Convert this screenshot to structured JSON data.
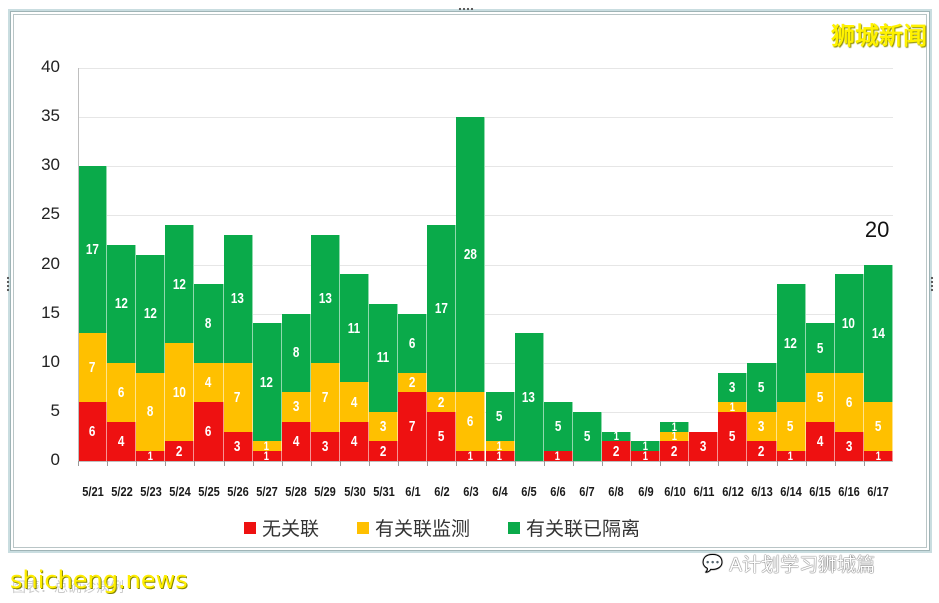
{
  "watermarks": {
    "brand_top_right": "狮城新闻",
    "site": "shicheng.news",
    "caption_faint": "图表：总确诊病例",
    "wechat_icon": "wechat-chat-bubbles-icon",
    "wechat_source": "A计划学习狮城篇"
  },
  "annotation": {
    "last_total": "20"
  },
  "legend": [
    {
      "label": "无关联",
      "color": "#ee1111"
    },
    {
      "label": "有关联监测",
      "color": "#ffc000"
    },
    {
      "label": "有关联已隔离",
      "color": "#0aaa4a"
    }
  ],
  "yticks": [
    "0",
    "5",
    "10",
    "15",
    "20",
    "25",
    "30",
    "35",
    "40"
  ],
  "chart_data": {
    "type": "bar",
    "stacked": true,
    "title": "",
    "xlabel": "",
    "ylabel": "",
    "ylim": [
      0,
      40
    ],
    "yticks": [
      0,
      5,
      10,
      15,
      20,
      25,
      30,
      35,
      40
    ],
    "grid": true,
    "legend_position": "bottom",
    "categories": [
      "5/21",
      "5/22",
      "5/23",
      "5/24",
      "5/25",
      "5/26",
      "5/27",
      "5/28",
      "5/29",
      "5/30",
      "5/31",
      "6/1",
      "6/2",
      "6/3",
      "6/4",
      "6/5",
      "6/6",
      "6/7",
      "6/8",
      "6/9",
      "6/10",
      "6/11",
      "6/12",
      "6/13",
      "6/14",
      "6/15",
      "6/16",
      "6/17"
    ],
    "series": [
      {
        "name": "无关联",
        "color": "#ee1111",
        "values": [
          6,
          4,
          1,
          2,
          6,
          3,
          1,
          4,
          3,
          4,
          2,
          7,
          5,
          1,
          1,
          0,
          1,
          0,
          2,
          1,
          2,
          3,
          5,
          2,
          1,
          4,
          3,
          1
        ]
      },
      {
        "name": "有关联监测",
        "color": "#ffc000",
        "values": [
          7,
          6,
          8,
          10,
          4,
          7,
          1,
          3,
          7,
          4,
          3,
          2,
          2,
          6,
          1,
          0,
          0,
          0,
          0,
          0,
          1,
          0,
          1,
          3,
          5,
          5,
          6,
          5
        ]
      },
      {
        "name": "有关联已隔离",
        "color": "#0aaa4a",
        "values": [
          17,
          12,
          12,
          12,
          8,
          13,
          12,
          8,
          13,
          11,
          11,
          6,
          17,
          28,
          5,
          13,
          5,
          5,
          1,
          1,
          1,
          0,
          3,
          5,
          12,
          5,
          10,
          14
        ]
      }
    ],
    "totals": [
      30,
      22,
      21,
      24,
      18,
      23,
      14,
      15,
      23,
      19,
      16,
      15,
      24,
      35,
      7,
      13,
      6,
      5,
      3,
      2,
      4,
      3,
      9,
      10,
      18,
      14,
      19,
      20
    ],
    "annotations": [
      {
        "category": "6/17",
        "text": "20"
      }
    ]
  }
}
